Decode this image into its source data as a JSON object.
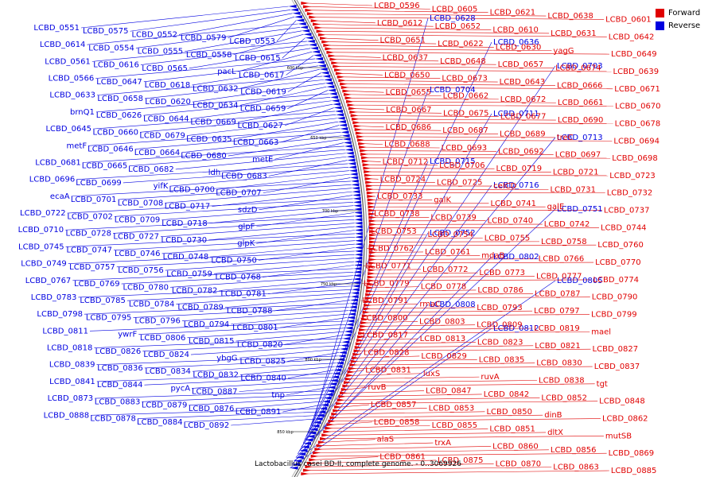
{
  "legend": {
    "forward_label": "Forward",
    "reverse_label": "Reverse",
    "forward_color": "#e00000",
    "reverse_color": "#0000e0"
  },
  "caption": "Lactobacillus casei BD-II, complete genome. - 0..3069926",
  "position_marks": [
    "600 kbp",
    "650 kbp",
    "700 kbp",
    "750 kbp",
    "800 kbp",
    "850 kbp"
  ],
  "reverse_genes": [
    "LCBD_0551",
    "LCBD_0575",
    "LCBD_0552",
    "LCBD_0579",
    "LCBD_0553",
    "LCBD_0614",
    "LCBD_0554",
    "LCBD_0555",
    "LCBD_0558",
    "LCBD_0615",
    "LCBD_0561",
    "LCBD_0616",
    "LCBD_0565",
    "pacL",
    "LCBD_0617",
    "LCBD_0566",
    "LCBD_0647",
    "LCBD_0618",
    "LCBD_0632",
    "LCBD_0619",
    "LCBD_0633",
    "LCBD_0658",
    "LCBD_0620",
    "LCBD_0634",
    "LCBD_0659",
    "brnQ1",
    "LCBD_0626",
    "LCBD_0644",
    "LCBD_0669",
    "LCBD_0627",
    "LCBD_0645",
    "LCBD_0660",
    "LCBD_0679",
    "LCBD_0635",
    "LCBD_0663",
    "metF",
    "LCBD_0646",
    "LCBD_0664",
    "LCBD_0680",
    "metE",
    "LCBD_0681",
    "LCBD_0665",
    "LCBD_0682",
    "ldh",
    "LCBD_0683",
    "LCBD_0696",
    "LCBD_0699",
    "yifK",
    "LCBD_0700",
    "LCBD_0707",
    "ecaA",
    "LCBD_0701",
    "LCBD_0708",
    "LCBD_0717",
    "sdzD",
    "LCBD_0722",
    "LCBD_0702",
    "LCBD_0709",
    "LCBD_0718",
    "glpF",
    "LCBD_0710",
    "LCBD_0728",
    "LCBD_0727",
    "LCBD_0730",
    "glpK",
    "LCBD_0745",
    "LCBD_0747",
    "LCBD_0746",
    "LCBD_0748",
    "LCBD_0750",
    "LCBD_0749",
    "LCBD_0757",
    "LCBD_0756",
    "LCBD_0759",
    "LCBD_0768",
    "LCBD_0767",
    "LCBD_0769",
    "LCBD_0780",
    "LCBD_0782",
    "LCBD_0781",
    "LCBD_0783",
    "LCBD_0785",
    "LCBD_0784",
    "LCBD_0789",
    "LCBD_0788",
    "LCBD_0798",
    "LCBD_0795",
    "LCBD_0796",
    "LCBD_0794",
    "LCBD_0801",
    "LCBD_0811",
    "ywrF",
    "LCBD_0806",
    "LCBD_0815",
    "LCBD_0820",
    "LCBD_0818",
    "LCBD_0826",
    "LCBD_0824",
    "ybgG",
    "LCBD_0825",
    "LCBD_0839",
    "LCBD_0836",
    "LCBD_0834",
    "LCBD_0832",
    "LCBD_0840",
    "LCBD_0841",
    "LCBD_0844",
    "pycA",
    "LCBD_0887",
    "tnp",
    "LCBD_0873",
    "LCBD_0883",
    "LCBD_0879",
    "LCBD_0876",
    "LCBD_0891",
    "LCBD_0888",
    "LCBD_0878",
    "LCBD_0884",
    "LCBD_0892",
    "LCBD_0628",
    "LCBD_0636",
    "LCBD_0703",
    "LCBD_0704",
    "LCBD_0711",
    "LCBD_0713",
    "LCBD_0715",
    "LCBD_0716",
    "LCBD_0751",
    "LCBD_0752",
    "LCBD_0802",
    "LCBD_0805",
    "LCBD_0808",
    "LCBD_0812"
  ],
  "forward_genes": [
    "LCBD_0596",
    "LCBD_0605",
    "LCBD_0621",
    "LCBD_0638",
    "LCBD_0601",
    "LCBD_0612",
    "LCBD_0652",
    "LCBD_0610",
    "LCBD_0631",
    "LCBD_0642",
    "LCBD_0651",
    "LCBD_0622",
    "LCBD_0630",
    "yagG",
    "LCBD_0649",
    "LCBD_0637",
    "LCBD_0648",
    "LCBD_0657",
    "LCBD_0674",
    "LCBD_0639",
    "LCBD_0650",
    "LCBD_0673",
    "LCBD_0643",
    "LCBD_0666",
    "LCBD_0671",
    "LCBD_0655",
    "LCBD_0662",
    "LCBD_0672",
    "LCBD_0661",
    "LCBD_0670",
    "LCBD_0667",
    "LCBD_0675",
    "LCBD_0677",
    "LCBD_0690",
    "LCBD_0678",
    "LCBD_0686",
    "LCBD_0687",
    "LCBD_0689",
    "treC",
    "LCBD_0694",
    "LCBD_0688",
    "LCBD_0693",
    "LCBD_0692",
    "LCBD_0697",
    "LCBD_0698",
    "LCBD_0712",
    "LCBD_0706",
    "LCBD_0719",
    "LCBD_0721",
    "LCBD_0723",
    "LCBD_0724",
    "LCBD_0725",
    "celCD",
    "LCBD_0731",
    "LCBD_0732",
    "LCBD_0733",
    "galK",
    "LCBD_0741",
    "galE",
    "LCBD_0737",
    "LCBD_0738",
    "LCBD_0739",
    "LCBD_0740",
    "LCBD_0742",
    "LCBD_0744",
    "LCBD_0753",
    "LCBD_0754",
    "LCBD_0755",
    "LCBD_0758",
    "LCBD_0760",
    "LCBD_0762",
    "LCBD_0761",
    "mdaB",
    "LCBD_0766",
    "LCBD_0770",
    "LCBD_0771",
    "LCBD_0772",
    "LCBD_0773",
    "LCBD_0777",
    "LCBD_0774",
    "LCBD_0779",
    "LCBD_0778",
    "LCBD_0786",
    "LCBD_0787",
    "LCBD_0790",
    "LCBD_0791",
    "rmaC",
    "LCBD_0793",
    "LCBD_0797",
    "LCBD_0799",
    "LCBD_0800",
    "LCBD_0803",
    "LCBD_0809",
    "LCBD_0819",
    "mael",
    "LCBD_0817",
    "LCBD_0813",
    "LCBD_0823",
    "LCBD_0821",
    "LCBD_0827",
    "LCBD_0828",
    "LCBD_0829",
    "LCBD_0835",
    "LCBD_0830",
    "LCBD_0837",
    "LCBD_0831",
    "luxS",
    "ruvA",
    "LCBD_0838",
    "tgt",
    "ruvB",
    "LCBD_0847",
    "LCBD_0842",
    "LCBD_0852",
    "LCBD_0848",
    "LCBD_0857",
    "LCBD_0853",
    "LCBD_0850",
    "dinB",
    "LCBD_0862",
    "LCBD_0858",
    "LCBD_0855",
    "LCBD_0851",
    "dltX",
    "mutSB",
    "alaS",
    "trxA",
    "LCBD_0860",
    "LCBD_0856",
    "LCBD_0869",
    "LCBD_0861",
    "LCBD_0875",
    "LCBD_0870",
    "LCBD_0863",
    "LCBD_0885"
  ]
}
